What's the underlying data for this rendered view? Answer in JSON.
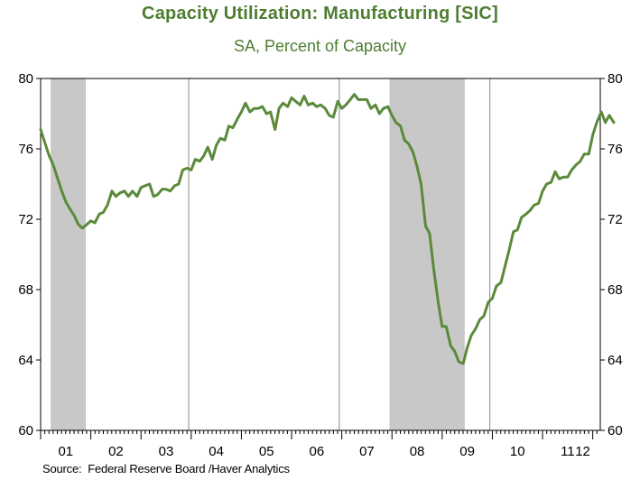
{
  "chart_data": {
    "type": "line",
    "title": "Capacity Utilization: Manufacturing [SIC]",
    "subtitle": "SA, Percent of Capacity",
    "source": "Source:  Federal Reserve Board /Haver Analytics",
    "ylim": [
      60,
      80
    ],
    "yticks": [
      60,
      64,
      68,
      72,
      76,
      80
    ],
    "xlim": [
      2001.0,
      2012.15
    ],
    "xtick_labels": [
      "01",
      "02",
      "03",
      "04",
      "05",
      "06",
      "07",
      "08",
      "09",
      "10",
      "11",
      "12"
    ],
    "grid": "vertical lines at year boundaries",
    "recessions": [
      {
        "start": 2001.2,
        "end": 2001.9
      },
      {
        "start": 2007.95,
        "end": 2009.45
      }
    ],
    "colors": {
      "line": "#5a8a3a",
      "title": "#4e7d32",
      "recession": "#c8c8c8"
    },
    "series": [
      {
        "values": [
          [
            2001.0,
            77.1
          ],
          [
            2001.08,
            76.4
          ],
          [
            2001.17,
            75.6
          ],
          [
            2001.25,
            75.1
          ],
          [
            2001.33,
            74.4
          ],
          [
            2001.42,
            73.6
          ],
          [
            2001.5,
            73.0
          ],
          [
            2001.58,
            72.6
          ],
          [
            2001.67,
            72.2
          ],
          [
            2001.75,
            71.7
          ],
          [
            2001.83,
            71.5
          ],
          [
            2001.92,
            71.7
          ],
          [
            2002.0,
            71.9
          ],
          [
            2002.08,
            71.8
          ],
          [
            2002.17,
            72.3
          ],
          [
            2002.25,
            72.4
          ],
          [
            2002.33,
            72.8
          ],
          [
            2002.42,
            73.6
          ],
          [
            2002.5,
            73.3
          ],
          [
            2002.58,
            73.5
          ],
          [
            2002.67,
            73.6
          ],
          [
            2002.75,
            73.3
          ],
          [
            2002.83,
            73.6
          ],
          [
            2002.92,
            73.3
          ],
          [
            2003.0,
            73.8
          ],
          [
            2003.08,
            73.9
          ],
          [
            2003.17,
            74.0
          ],
          [
            2003.25,
            73.3
          ],
          [
            2003.33,
            73.4
          ],
          [
            2003.42,
            73.7
          ],
          [
            2003.5,
            73.7
          ],
          [
            2003.58,
            73.6
          ],
          [
            2003.67,
            73.9
          ],
          [
            2003.75,
            74.0
          ],
          [
            2003.83,
            74.8
          ],
          [
            2003.92,
            74.9
          ],
          [
            2004.0,
            74.8
          ],
          [
            2004.08,
            75.4
          ],
          [
            2004.17,
            75.3
          ],
          [
            2004.25,
            75.6
          ],
          [
            2004.33,
            76.1
          ],
          [
            2004.42,
            75.4
          ],
          [
            2004.5,
            76.2
          ],
          [
            2004.58,
            76.6
          ],
          [
            2004.67,
            76.5
          ],
          [
            2004.75,
            77.3
          ],
          [
            2004.83,
            77.2
          ],
          [
            2004.92,
            77.7
          ],
          [
            2005.0,
            78.1
          ],
          [
            2005.08,
            78.6
          ],
          [
            2005.17,
            78.1
          ],
          [
            2005.25,
            78.3
          ],
          [
            2005.33,
            78.3
          ],
          [
            2005.42,
            78.4
          ],
          [
            2005.5,
            78.0
          ],
          [
            2005.58,
            78.1
          ],
          [
            2005.67,
            77.1
          ],
          [
            2005.75,
            78.3
          ],
          [
            2005.83,
            78.6
          ],
          [
            2005.92,
            78.4
          ],
          [
            2006.0,
            78.9
          ],
          [
            2006.08,
            78.7
          ],
          [
            2006.17,
            78.5
          ],
          [
            2006.25,
            79.0
          ],
          [
            2006.33,
            78.5
          ],
          [
            2006.42,
            78.6
          ],
          [
            2006.5,
            78.4
          ],
          [
            2006.58,
            78.5
          ],
          [
            2006.67,
            78.3
          ],
          [
            2006.75,
            77.9
          ],
          [
            2006.83,
            77.8
          ],
          [
            2006.92,
            78.7
          ],
          [
            2007.0,
            78.3
          ],
          [
            2007.08,
            78.5
          ],
          [
            2007.17,
            78.8
          ],
          [
            2007.25,
            79.1
          ],
          [
            2007.33,
            78.8
          ],
          [
            2007.42,
            78.8
          ],
          [
            2007.5,
            78.8
          ],
          [
            2007.58,
            78.3
          ],
          [
            2007.67,
            78.5
          ],
          [
            2007.75,
            78.0
          ],
          [
            2007.83,
            78.3
          ],
          [
            2007.92,
            78.4
          ],
          [
            2008.0,
            77.9
          ],
          [
            2008.08,
            77.5
          ],
          [
            2008.17,
            77.3
          ],
          [
            2008.25,
            76.5
          ],
          [
            2008.33,
            76.3
          ],
          [
            2008.42,
            75.8
          ],
          [
            2008.5,
            75.0
          ],
          [
            2008.58,
            74.0
          ],
          [
            2008.67,
            71.6
          ],
          [
            2008.75,
            71.2
          ],
          [
            2008.83,
            69.2
          ],
          [
            2008.92,
            67.3
          ],
          [
            2009.0,
            65.9
          ],
          [
            2009.08,
            65.9
          ],
          [
            2009.17,
            64.8
          ],
          [
            2009.25,
            64.5
          ],
          [
            2009.33,
            63.9
          ],
          [
            2009.42,
            63.8
          ],
          [
            2009.5,
            64.7
          ],
          [
            2009.58,
            65.4
          ],
          [
            2009.67,
            65.8
          ],
          [
            2009.75,
            66.3
          ],
          [
            2009.83,
            66.5
          ],
          [
            2009.92,
            67.3
          ],
          [
            2010.0,
            67.5
          ],
          [
            2010.08,
            68.2
          ],
          [
            2010.17,
            68.4
          ],
          [
            2010.25,
            69.3
          ],
          [
            2010.33,
            70.2
          ],
          [
            2010.42,
            71.3
          ],
          [
            2010.5,
            71.4
          ],
          [
            2010.58,
            72.1
          ],
          [
            2010.67,
            72.3
          ],
          [
            2010.75,
            72.5
          ],
          [
            2010.83,
            72.8
          ],
          [
            2010.92,
            72.9
          ],
          [
            2011.0,
            73.6
          ],
          [
            2011.08,
            74.0
          ],
          [
            2011.17,
            74.1
          ],
          [
            2011.25,
            74.7
          ],
          [
            2011.33,
            74.3
          ],
          [
            2011.42,
            74.4
          ],
          [
            2011.5,
            74.4
          ],
          [
            2011.58,
            74.8
          ],
          [
            2011.67,
            75.1
          ],
          [
            2011.75,
            75.3
          ],
          [
            2011.83,
            75.7
          ],
          [
            2011.92,
            75.7
          ],
          [
            2012.0,
            76.8
          ],
          [
            2012.08,
            77.5
          ],
          [
            2012.17,
            78.1
          ],
          [
            2012.25,
            77.5
          ],
          [
            2012.33,
            77.9
          ],
          [
            2012.42,
            77.5
          ]
        ]
      }
    ]
  }
}
